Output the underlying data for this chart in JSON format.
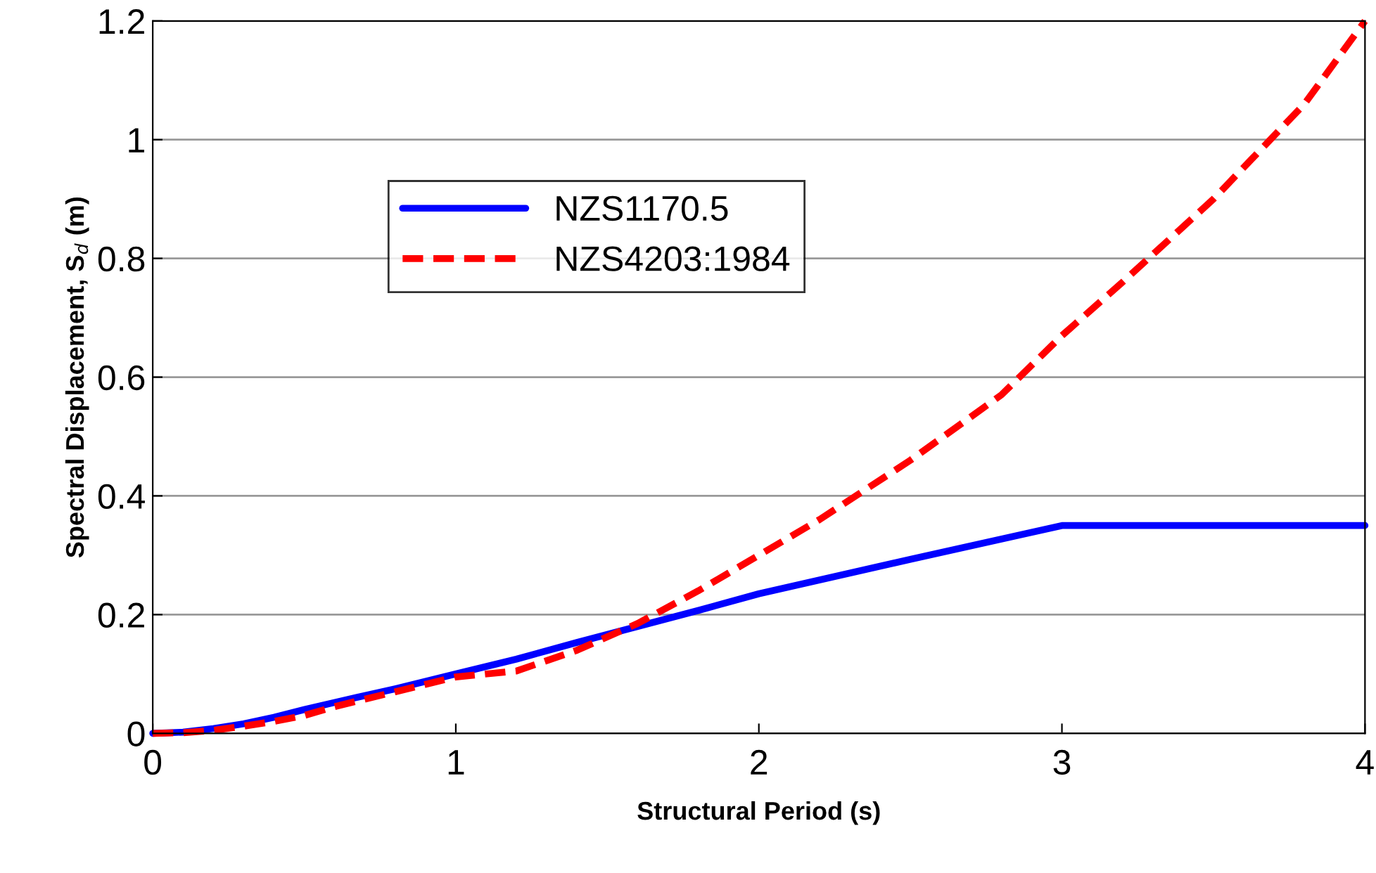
{
  "chart_data": {
    "type": "line",
    "xlabel": "Structural Period (s)",
    "ylabel": "Spectral Displacement, S$_{d}$ (m)",
    "xlim": [
      0,
      4
    ],
    "ylim": [
      0,
      1.2
    ],
    "xticks": [
      0,
      1,
      2,
      3,
      4
    ],
    "yticks": [
      0,
      0.2,
      0.4,
      0.6,
      0.8,
      1,
      1.2
    ],
    "grid": "y",
    "legend": "top left",
    "series": [
      {
        "name": "NZS1170.5",
        "color": "#0000ff",
        "line_style": "solid",
        "x": [
          0,
          0.1,
          0.2,
          0.3,
          0.4,
          0.5,
          0.6,
          0.8,
          1,
          1.2,
          1.4,
          1.6,
          1.8,
          2,
          2.5,
          3,
          4
        ],
        "values": [
          0,
          0.002,
          0.008,
          0.016,
          0.027,
          0.04,
          0.052,
          0.075,
          0.1,
          0.125,
          0.153,
          0.18,
          0.207,
          0.235,
          0.293,
          0.35,
          0.35
        ]
      },
      {
        "name": "NZS4203:1984",
        "color": "#ff0000",
        "line_style": "dashed",
        "x": [
          0,
          0.1,
          0.2,
          0.3,
          0.4,
          0.5,
          0.6,
          0.8,
          1,
          1.2,
          1.4,
          1.6,
          1.8,
          2,
          2.2,
          2.5,
          2.8,
          3,
          3.2,
          3.5,
          3.8,
          4
        ],
        "values": [
          0,
          0.001,
          0.005,
          0.012,
          0.02,
          0.03,
          0.045,
          0.07,
          0.095,
          0.105,
          0.14,
          0.185,
          0.24,
          0.3,
          0.36,
          0.46,
          0.57,
          0.67,
          0.76,
          0.9,
          1.06,
          1.2
        ]
      }
    ]
  }
}
